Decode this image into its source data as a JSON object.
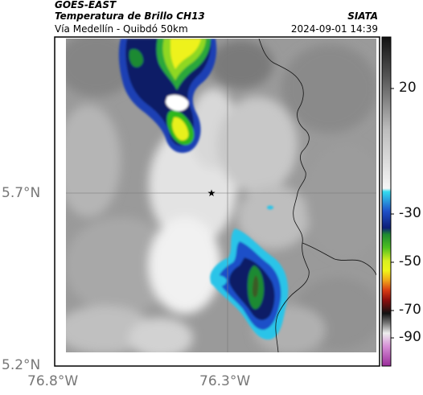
{
  "header": {
    "satellite": "GOES-EAST",
    "product": "Temperatura de Brillo CH13",
    "region": "Vía Medellín - Quibdó 50km",
    "organization": "SIATA",
    "timestamp": "2024-09-01 14:39"
  },
  "axes": {
    "lat_labels": [
      "5.7°N",
      "5.2°N"
    ],
    "lon_labels": [
      "76.8°W",
      "76.3°W"
    ]
  },
  "colorbar": {
    "ticks": [
      "20",
      "-30",
      "-50",
      "-70",
      "-90"
    ],
    "colors": {
      "grey_warm": "#8c8c8c",
      "cyan": "#26c6e8",
      "blue": "#1e40b8",
      "navy": "#0a1b66",
      "green": "#2fb81e",
      "yellow": "#f0f51a",
      "orange": "#e88a1e",
      "red": "#c21a1a",
      "black": "#111111",
      "magenta": "#b040b8"
    }
  },
  "map": {
    "marker_icon": "star-icon",
    "land_color": "#9a9a9a",
    "border_color": "#111111"
  }
}
